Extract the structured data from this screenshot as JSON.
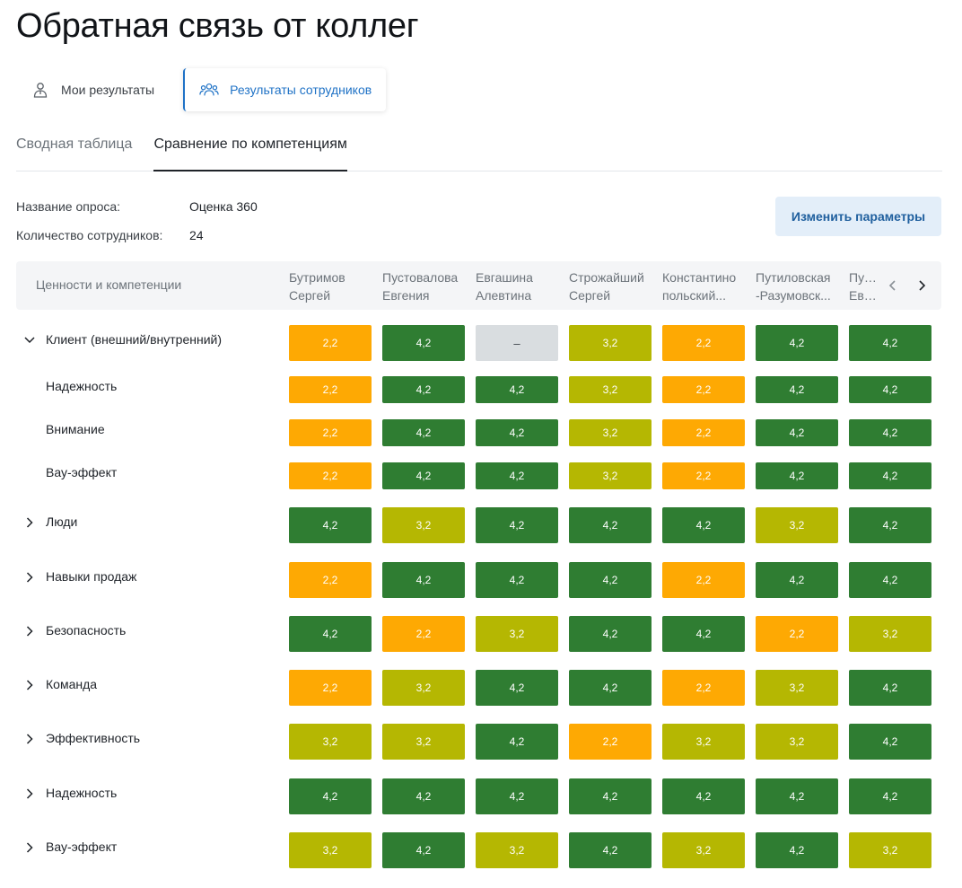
{
  "page": {
    "title": "Обратная связь от коллег"
  },
  "mode_tabs": [
    {
      "label": "Мои результаты",
      "icon": "person-icon",
      "active": false
    },
    {
      "label": "Результаты сотрудников",
      "icon": "people-group-icon",
      "active": true
    }
  ],
  "view_tabs": [
    {
      "label": "Сводная таблица",
      "active": false
    },
    {
      "label": "Сравнение по компетенциям",
      "active": true
    }
  ],
  "meta": {
    "survey_label": "Название опроса:",
    "survey_value": "Оценка 360",
    "count_label": "Количество сотрудников:",
    "count_value": "24"
  },
  "params_button": "Изменить параметры",
  "colors": {
    "low": "#fea903",
    "mid": "#b5b702",
    "high": "#2f7d32",
    "none": "#d9dde0",
    "accent": "#1f72c6"
  },
  "table": {
    "first_column": "Ценности и компетенции",
    "columns": [
      {
        "line1": "Бутримов",
        "line2": "Сергей"
      },
      {
        "line1": "Пустовалова",
        "line2": "Евгения"
      },
      {
        "line1": "Евгашина",
        "line2": "Алевтина"
      },
      {
        "line1": "Строжайший",
        "line2": "Сергей"
      },
      {
        "line1": "Константино",
        "line2": "польский..."
      },
      {
        "line1": "Путиловская",
        "line2": "-Разумовск..."
      },
      {
        "line1": "Пустовалова",
        "line2": "Евгения"
      }
    ],
    "rows": [
      {
        "label": "Клиент (внешний/внутренний)",
        "kind": "group-open",
        "values": [
          "2,2",
          "4,2",
          "–",
          "3,2",
          "2,2",
          "4,2",
          "4,2"
        ],
        "levels": [
          "low",
          "high",
          "none",
          "mid",
          "low",
          "high",
          "high"
        ]
      },
      {
        "label": "Надежность",
        "kind": "child",
        "values": [
          "2,2",
          "4,2",
          "4,2",
          "3,2",
          "2,2",
          "4,2",
          "4,2"
        ],
        "levels": [
          "low",
          "high",
          "high",
          "mid",
          "low",
          "high",
          "high"
        ]
      },
      {
        "label": "Внимание",
        "kind": "child",
        "values": [
          "2,2",
          "4,2",
          "4,2",
          "3,2",
          "2,2",
          "4,2",
          "4,2"
        ],
        "levels": [
          "low",
          "high",
          "high",
          "mid",
          "low",
          "high",
          "high"
        ]
      },
      {
        "label": "Вау-эффект",
        "kind": "child",
        "values": [
          "2,2",
          "4,2",
          "4,2",
          "3,2",
          "2,2",
          "4,2",
          "4,2"
        ],
        "levels": [
          "low",
          "high",
          "high",
          "mid",
          "low",
          "high",
          "high"
        ]
      },
      {
        "label": "Люди",
        "kind": "group",
        "values": [
          "4,2",
          "3,2",
          "4,2",
          "4,2",
          "4,2",
          "3,2",
          "4,2"
        ],
        "levels": [
          "high",
          "mid",
          "high",
          "high",
          "high",
          "mid",
          "high"
        ]
      },
      {
        "label": "Навыки продаж",
        "kind": "group",
        "values": [
          "2,2",
          "4,2",
          "4,2",
          "4,2",
          "2,2",
          "4,2",
          "4,2"
        ],
        "levels": [
          "low",
          "high",
          "high",
          "high",
          "low",
          "high",
          "high"
        ]
      },
      {
        "label": "Безопасность",
        "kind": "group",
        "values": [
          "4,2",
          "2,2",
          "3,2",
          "4,2",
          "4,2",
          "2,2",
          "3,2"
        ],
        "levels": [
          "high",
          "low",
          "mid",
          "high",
          "high",
          "low",
          "mid"
        ]
      },
      {
        "label": "Команда",
        "kind": "group",
        "values": [
          "2,2",
          "3,2",
          "4,2",
          "4,2",
          "2,2",
          "3,2",
          "4,2"
        ],
        "levels": [
          "low",
          "mid",
          "high",
          "high",
          "low",
          "mid",
          "high"
        ]
      },
      {
        "label": "Эффективность",
        "kind": "group",
        "values": [
          "3,2",
          "3,2",
          "4,2",
          "2,2",
          "3,2",
          "3,2",
          "4,2"
        ],
        "levels": [
          "mid",
          "mid",
          "high",
          "low",
          "mid",
          "mid",
          "high"
        ]
      },
      {
        "label": "Надежность",
        "kind": "group",
        "values": [
          "4,2",
          "4,2",
          "4,2",
          "4,2",
          "4,2",
          "4,2",
          "4,2"
        ],
        "levels": [
          "high",
          "high",
          "high",
          "high",
          "high",
          "high",
          "high"
        ]
      },
      {
        "label": "Вау-эффект",
        "kind": "group",
        "values": [
          "3,2",
          "4,2",
          "3,2",
          "4,2",
          "3,2",
          "4,2",
          "3,2"
        ],
        "levels": [
          "mid",
          "high",
          "mid",
          "high",
          "mid",
          "high",
          "mid"
        ]
      }
    ]
  }
}
